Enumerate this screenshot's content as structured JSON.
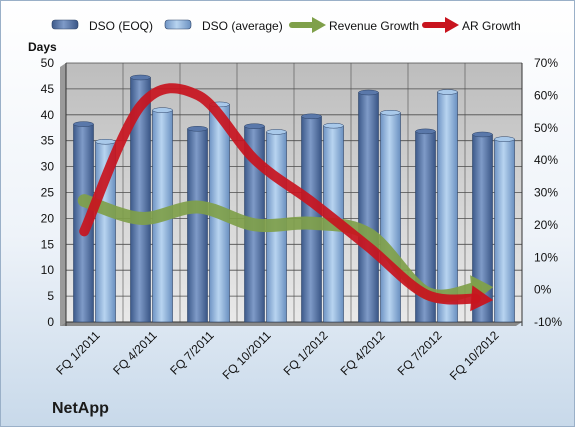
{
  "chart_data": {
    "type": "bar",
    "brand": "NetApp",
    "left_axis_label": "Days",
    "categories": [
      "FQ 1/2011",
      "FQ 4/2011",
      "FQ 7/2011",
      "FQ 10/2011",
      "FQ 1/2012",
      "FQ 4/2012",
      "FQ 7/2012",
      "FQ 10/2012"
    ],
    "ylim_left": [
      0,
      50
    ],
    "yticks_left": [
      "0",
      "5",
      "10",
      "15",
      "20",
      "25",
      "30",
      "35",
      "40",
      "45",
      "50"
    ],
    "ylim_right": [
      -10,
      70
    ],
    "yticks_right": [
      "-10%",
      "0%",
      "10%",
      "20%",
      "30%",
      "40%",
      "50%",
      "60%",
      "70%"
    ],
    "grid": true,
    "legend_position": "top",
    "series": [
      {
        "name": "DSO (EOQ)",
        "kind": "bar",
        "axis": "left",
        "color": "#4a6a9c",
        "values": [
          38.2,
          47.2,
          37.3,
          37.8,
          39.7,
          44.3,
          36.8,
          36.2
        ]
      },
      {
        "name": "DSO (average)",
        "kind": "bar",
        "axis": "left",
        "color": "#9cc0e4",
        "values": [
          34.8,
          40.9,
          42.0,
          36.7,
          37.9,
          40.4,
          44.4,
          35.3
        ]
      },
      {
        "name": "Revenue Growth",
        "kind": "arrow-line",
        "axis": "right",
        "unit": "%",
        "color": "#7fa04a",
        "values": [
          27.5,
          22.0,
          25.5,
          20.0,
          20.5,
          17.0,
          -1.0,
          0.5
        ]
      },
      {
        "name": "AR Growth",
        "kind": "arrow-line",
        "axis": "right",
        "unit": "%",
        "color": "#c8141e",
        "values": [
          18.0,
          57.0,
          60.0,
          40.0,
          27.0,
          13.0,
          -1.5,
          -3.0
        ]
      }
    ]
  }
}
